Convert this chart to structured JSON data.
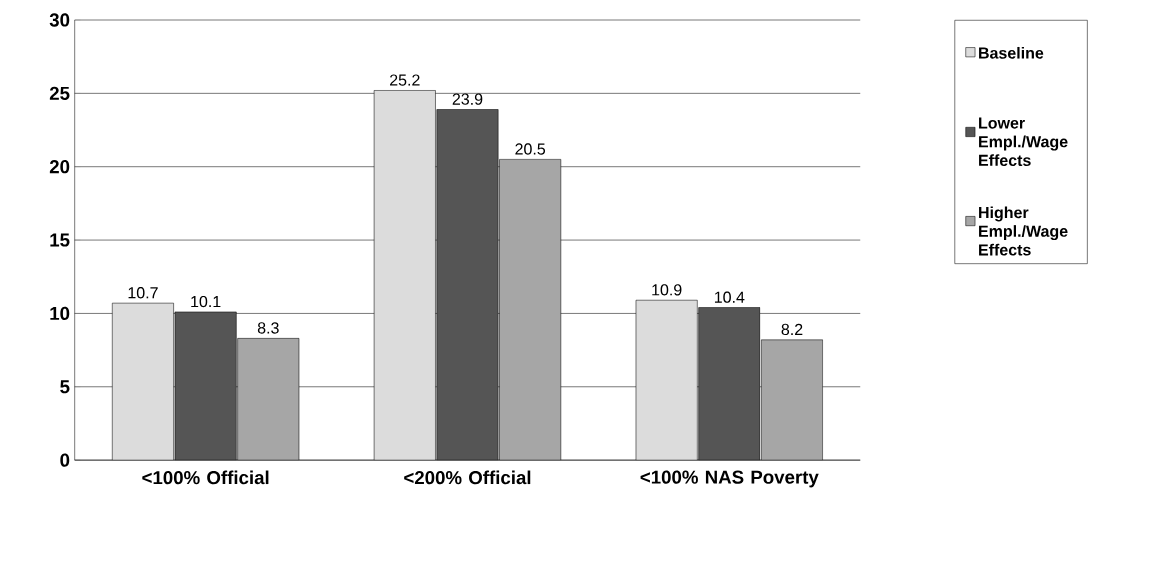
{
  "chart_data": {
    "type": "bar",
    "categories": [
      "<100% Official",
      "<200% Official",
      "<100% NAS Poverty"
    ],
    "series": [
      {
        "name": "Baseline",
        "color": "#dcdcdc",
        "values": [
          10.7,
          25.2,
          10.9
        ]
      },
      {
        "name": "Lower Empl./Wage Effects",
        "color": "#555555",
        "values": [
          10.1,
          23.9,
          10.4
        ]
      },
      {
        "name": "Higher Empl./Wage Effects",
        "color": "#a6a6a6",
        "values": [
          8.3,
          20.5,
          8.2
        ]
      }
    ],
    "ylim": [
      0,
      30
    ],
    "yticks": [
      0,
      5,
      10,
      15,
      20,
      25,
      30
    ],
    "grid": "y",
    "legend": "right",
    "data_labels": true
  }
}
